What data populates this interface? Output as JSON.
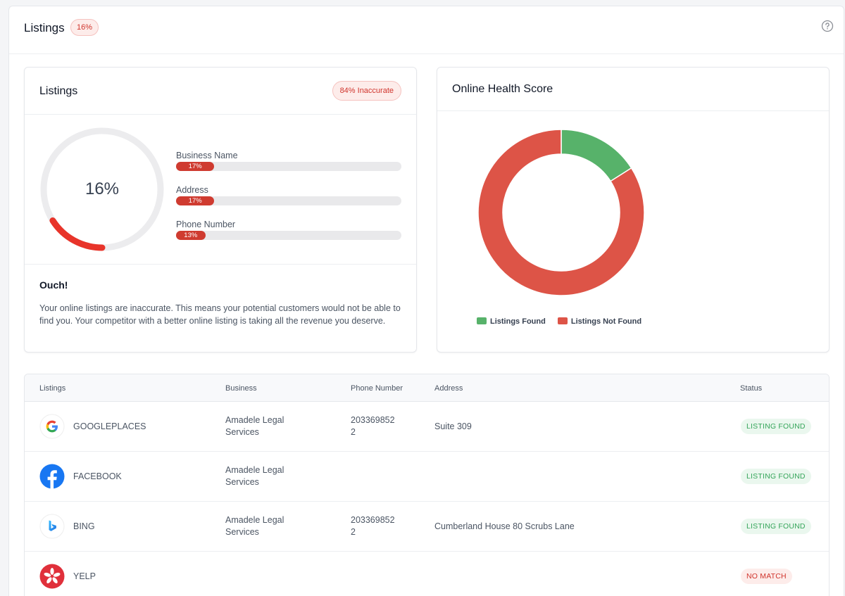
{
  "header": {
    "title": "Listings",
    "badge": "16%"
  },
  "listings_card": {
    "title": "Listings",
    "badge": "84% Inaccurate",
    "score_text": "16%",
    "score_fraction": 0.16,
    "accent_color": "#e8342a",
    "metrics": [
      {
        "label": "Business Name",
        "value_text": "17%",
        "fraction": 0.17
      },
      {
        "label": "Address",
        "value_text": "17%",
        "fraction": 0.17
      },
      {
        "label": "Phone Number",
        "value_text": "13%",
        "fraction": 0.13
      }
    ],
    "message_title": "Ouch!",
    "message_body": "Your online listings are inaccurate. This means your potential customers would not be able to find you. Your competitor with a better online listing is taking all the revenue you deserve."
  },
  "health_card": {
    "title": "Online Health Score"
  },
  "chart_data": {
    "type": "pie",
    "donut": true,
    "categories": [
      "Listings Found",
      "Listings Not Found"
    ],
    "values": [
      16,
      84
    ],
    "colors": [
      "#57b26a",
      "#dd5447"
    ],
    "legend": "bottom"
  },
  "table": {
    "columns": [
      "Listings",
      "Business",
      "Phone Number",
      "Address",
      "Status"
    ],
    "rows": [
      {
        "icon": "google-icon",
        "name": "GOOGLEPLACES",
        "business": [
          "Amadele Legal",
          "Services"
        ],
        "phone": [
          "203369852",
          "2"
        ],
        "address": "Suite 309",
        "status": "LISTING FOUND"
      },
      {
        "icon": "facebook-icon",
        "name": "FACEBOOK",
        "business": [
          "Amadele Legal",
          "Services"
        ],
        "phone": [
          "",
          ""
        ],
        "address": "",
        "status": "LISTING FOUND"
      },
      {
        "icon": "bing-icon",
        "name": "BING",
        "business": [
          "Amadele Legal",
          "Services"
        ],
        "phone": [
          "203369852",
          "2"
        ],
        "address": "Cumberland House 80 Scrubs Lane",
        "status": "LISTING FOUND"
      },
      {
        "icon": "yelp-icon",
        "name": "YELP",
        "business": [
          "",
          ""
        ],
        "phone": [
          "",
          ""
        ],
        "address": "",
        "status": "NO MATCH"
      }
    ]
  }
}
